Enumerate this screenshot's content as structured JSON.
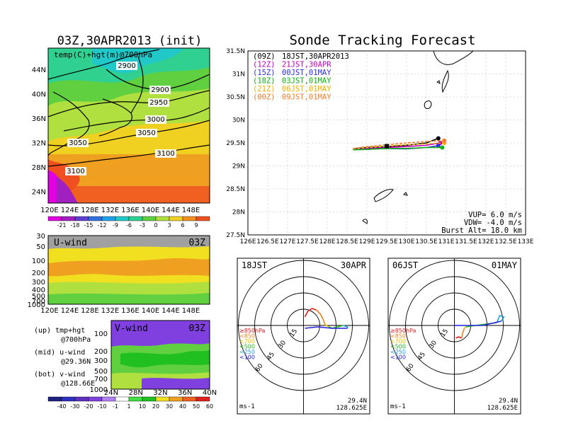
{
  "left_title": "03Z,30APR2013 (init)",
  "right_title": "Sonde Tracking Forecast",
  "map_label": "temp(C)+hgt(m)@700hPa",
  "map_xticks": [
    "120E",
    "124E",
    "128E",
    "132E",
    "136E",
    "140E",
    "144E",
    "148E"
  ],
  "map_yticks": [
    "44N",
    "40N",
    "36N",
    "32N",
    "28N",
    "24N"
  ],
  "contours": [
    "2900",
    "2900",
    "2950",
    "3000",
    "3050",
    "3050",
    "3100",
    "3100"
  ],
  "temp_scale": [
    "-21",
    "-18",
    "-15",
    "-12",
    "-9",
    "-6",
    "-3",
    "0",
    "3",
    "6",
    "9"
  ],
  "temp_colors": [
    "#e000e0",
    "#a020c0",
    "#6040d0",
    "#3070e0",
    "#20a0e8",
    "#20c8c8",
    "#30d090",
    "#60d040",
    "#b0e040",
    "#f0d020",
    "#f09020",
    "#f05020"
  ],
  "uwind": {
    "label": "U-wind",
    "time": "03Z",
    "yticks": [
      "30",
      "50",
      "100",
      "200",
      "300",
      "400",
      "500",
      "700",
      "1000"
    ],
    "xticks": [
      "120E",
      "124E",
      "128E",
      "132E",
      "136E",
      "140E",
      "144E",
      "148E"
    ]
  },
  "vwind": {
    "label": "V-wind",
    "time": "03Z",
    "yticks": [
      "100",
      "200",
      "300",
      "500",
      "700",
      "1000"
    ],
    "xticks": [
      "24N",
      "28N",
      "32N",
      "36N",
      "40N"
    ]
  },
  "wind_scale": [
    "-40",
    "-30",
    "-20",
    "-10",
    "-1",
    "1",
    "10",
    "20",
    "30",
    "40",
    "50",
    "60"
  ],
  "wind_colors": [
    "#202080",
    "#3030c0",
    "#6030c0",
    "#8040e0",
    "#b080f0",
    "#ffffff",
    "#40e040",
    "#20c020",
    "#f0e020",
    "#f0a020",
    "#f06020",
    "#e02020"
  ],
  "notes": [
    {
      "label": "(up) tmp+hgt",
      "sub": "@700hPa"
    },
    {
      "label": "(mid) u-wind",
      "sub": "@29.36N"
    },
    {
      "label": "(bot) v-wind",
      "sub": "@128.66E"
    }
  ],
  "legend": [
    {
      "code": "(09Z)",
      "text": "18JST,30APR2013",
      "color": "#000000"
    },
    {
      "code": "(12Z)",
      "text": "21JST,30APR",
      "color": "#c000c0"
    },
    {
      "code": "(15Z)",
      "text": "00JST,01MAY",
      "color": "#3030e0"
    },
    {
      "code": "(18Z)",
      "text": "03JST,01MAY",
      "color": "#10b010"
    },
    {
      "code": "(21Z)",
      "text": "06JST,01MAY",
      "color": "#f0b000"
    },
    {
      "code": "(00Z)",
      "text": "09JST,01MAY",
      "color": "#f08030"
    }
  ],
  "track_xticks": [
    "126E",
    "126.5E",
    "127E",
    "127.5E",
    "128E",
    "128.5E",
    "129E",
    "129.5E",
    "130E",
    "130.5E",
    "131E",
    "131.5E",
    "132E",
    "132.5E",
    "133E"
  ],
  "track_yticks": [
    "31.5N",
    "31N",
    "30.5N",
    "30N",
    "29.5N",
    "29N",
    "28.5N",
    "28N",
    "27.5N"
  ],
  "params": [
    "VUP=  6.0 m/s",
    "VDW= -4.0 m/s",
    "Burst Alt= 18.0 km"
  ],
  "chart_data": [
    {
      "type": "line",
      "title": "Sonde Tracking Forecast",
      "xlim": [
        126,
        133
      ],
      "ylim": [
        27.5,
        31.5
      ],
      "series": [
        {
          "name": "(09Z) 18JST,30APR2013",
          "x": [
            128.65,
            129.0,
            129.5,
            130.0,
            130.5,
            130.8
          ],
          "y": [
            29.37,
            29.4,
            29.42,
            29.45,
            29.5,
            29.6
          ]
        },
        {
          "name": "(12Z) 21JST,30APR",
          "x": [
            128.65,
            129.0,
            129.5,
            130.0,
            130.5,
            130.85
          ],
          "y": [
            29.36,
            29.38,
            29.4,
            29.42,
            29.45,
            29.5
          ]
        },
        {
          "name": "(15Z) 00JST,01MAY",
          "x": [
            128.65,
            129.0,
            129.5,
            130.0,
            130.5,
            130.8
          ],
          "y": [
            29.35,
            29.36,
            29.38,
            29.37,
            29.4,
            29.44
          ]
        },
        {
          "name": "(18Z) 03JST,01MAY",
          "x": [
            128.65,
            129.0,
            129.5,
            130.0,
            130.5,
            130.9
          ],
          "y": [
            29.35,
            29.36,
            29.38,
            29.38,
            29.4,
            29.4
          ]
        },
        {
          "name": "(21Z) 06JST,01MAY",
          "x": [
            128.65,
            129.0,
            129.5,
            130.0,
            130.5,
            130.95
          ],
          "y": [
            29.37,
            29.4,
            29.43,
            29.46,
            29.48,
            29.5
          ]
        },
        {
          "name": "(00Z) 09JST,01MAY",
          "x": [
            128.65,
            129.0,
            129.5,
            130.0,
            130.5,
            130.95
          ],
          "y": [
            29.38,
            29.42,
            29.46,
            29.5,
            29.53,
            29.55
          ]
        }
      ]
    }
  ],
  "hodo1": {
    "time": "18JST",
    "date": "30APR",
    "rings": [
      "15",
      "30",
      "45",
      "60"
    ],
    "levels": [
      "≥850hPa",
      "<850",
      "<700",
      "<500",
      "<250",
      "<100"
    ],
    "level_colors": [
      "#e02020",
      "#f08020",
      "#e0c000",
      "#20b020",
      "#20a0e0",
      "#2020e0"
    ],
    "unit": "ms-1",
    "lat": "29.4N",
    "lon": "128.625E"
  },
  "hodo2": {
    "time": "06JST",
    "date": "01MAY",
    "rings": [
      "15",
      "30",
      "45",
      "60"
    ],
    "levels": [
      "≥850hPa",
      "<850",
      "<700",
      "<500",
      "<250",
      "<100"
    ],
    "level_colors": [
      "#e02020",
      "#f08020",
      "#e0c000",
      "#20b020",
      "#20a0e0",
      "#2020e0"
    ],
    "unit": "ms-1",
    "lat": "29.4N",
    "lon": "128.625E"
  }
}
